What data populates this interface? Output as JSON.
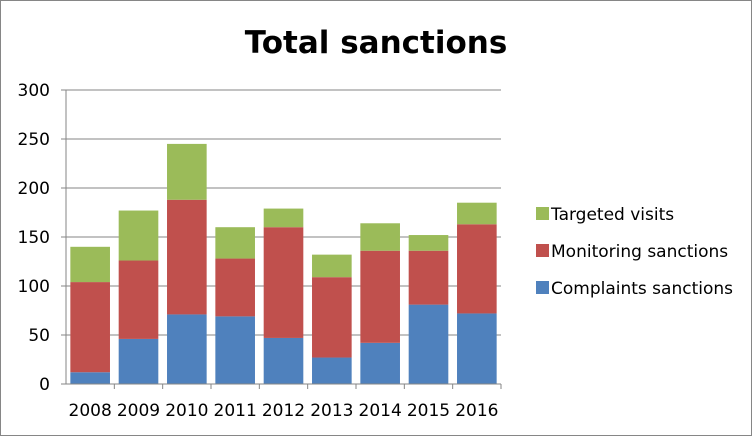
{
  "chart_data": {
    "type": "bar",
    "stacked": true,
    "title": "Total sanctions",
    "xlabel": "",
    "ylabel": "",
    "categories": [
      "2008",
      "2009",
      "2010",
      "2011",
      "2012",
      "2013",
      "2014",
      "2015",
      "2016"
    ],
    "series": [
      {
        "name": "Complaints sanctions",
        "color": "#4f81bd",
        "values": [
          12,
          46,
          71,
          69,
          47,
          27,
          42,
          81,
          72
        ]
      },
      {
        "name": "Monitoring sanctions",
        "color": "#c0504d",
        "values": [
          92,
          80,
          117,
          59,
          113,
          82,
          94,
          55,
          91
        ]
      },
      {
        "name": "Targeted visits",
        "color": "#9bbb59",
        "values": [
          36,
          51,
          57,
          32,
          19,
          23,
          28,
          16,
          22
        ]
      }
    ],
    "ylim": [
      0,
      300
    ],
    "yticks": [
      0,
      50,
      100,
      150,
      200,
      250,
      300
    ],
    "grid": true,
    "legend_position": "right",
    "legend_order": [
      "Targeted visits",
      "Monitoring sanctions",
      "Complaints sanctions"
    ]
  }
}
